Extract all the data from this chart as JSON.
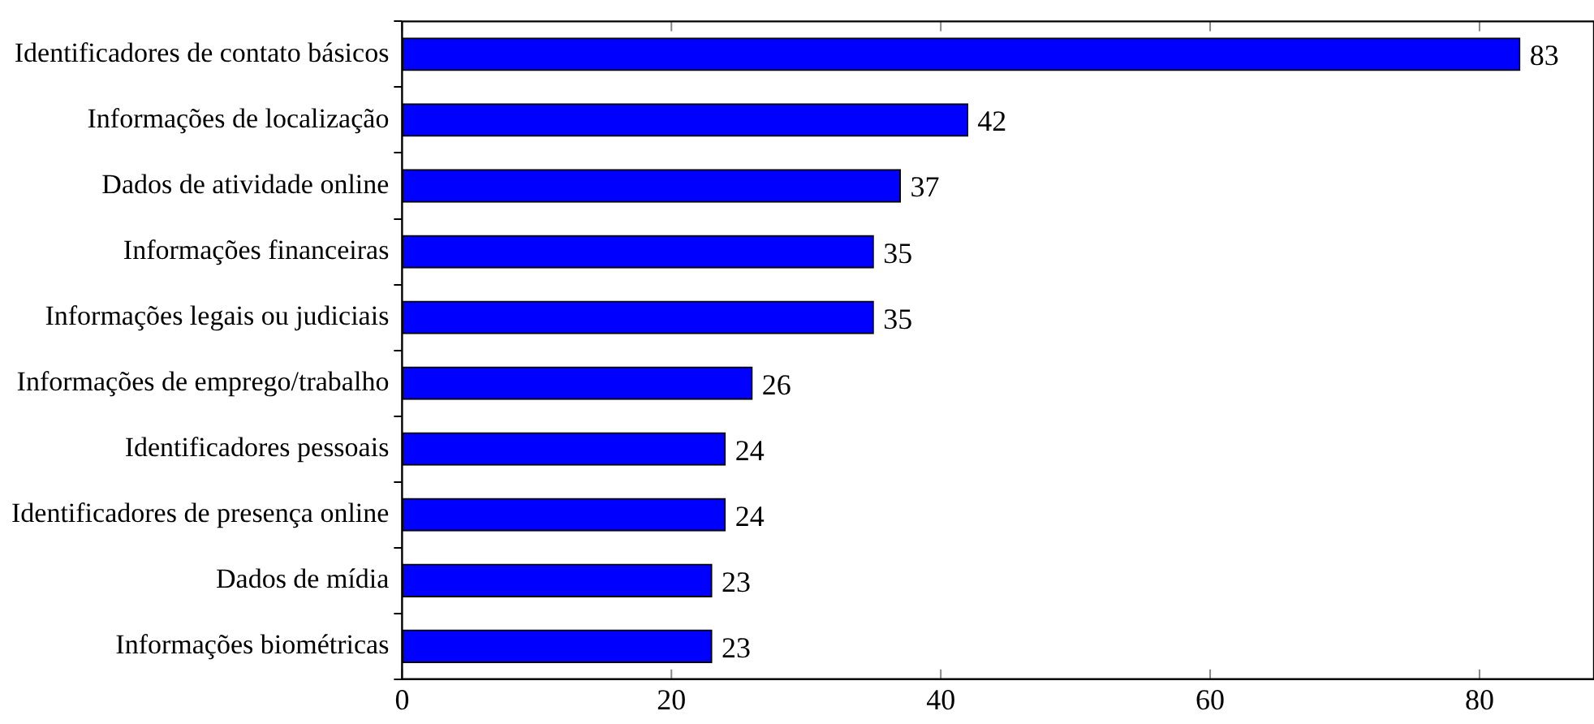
{
  "chart_data": {
    "type": "bar",
    "orientation": "horizontal",
    "categories": [
      "Identificadores de contato básicos",
      "Informações de localização",
      "Dados de atividade online",
      "Informações financeiras",
      "Informações legais ou judiciais",
      "Informações de emprego/trabalho",
      "Identificadores pessoais",
      "Identificadores de presença online",
      "Dados de mídia",
      "Informações biométricas"
    ],
    "values": [
      83,
      42,
      37,
      35,
      35,
      26,
      24,
      24,
      23,
      23
    ],
    "color": "#0000ff",
    "xlim": [
      0,
      88.5
    ],
    "xticks": [
      0,
      20,
      40,
      60,
      80
    ],
    "grid": false,
    "data_labels": true
  }
}
